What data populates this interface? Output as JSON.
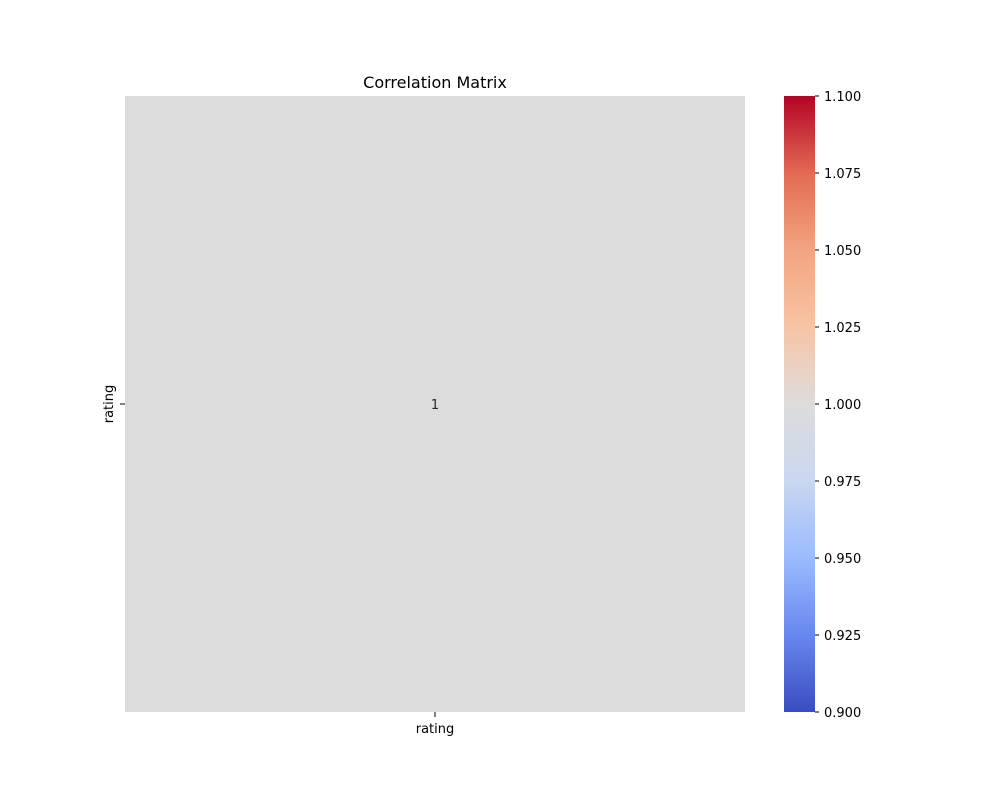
{
  "chart_data": {
    "type": "heatmap",
    "title": "Correlation Matrix",
    "x_labels": [
      "rating"
    ],
    "y_labels": [
      "rating"
    ],
    "values": [
      [
        1
      ]
    ],
    "annotations": [
      [
        "1"
      ]
    ],
    "colormap": "coolwarm",
    "cell_color": "#dddcdc",
    "colorbar": {
      "vmin": 0.9,
      "vmax": 1.1,
      "ticks": [
        "0.900",
        "0.925",
        "0.950",
        "0.975",
        "1.000",
        "1.025",
        "1.050",
        "1.075",
        "1.100"
      ],
      "colors": [
        "#3b4cc0",
        "#6788ee",
        "#9abbff",
        "#c9d7f0",
        "#dddcdc",
        "#f7c4a4",
        "#f3a481",
        "#e36a53",
        "#b40426"
      ]
    },
    "grid": false,
    "legend": "colorbar right"
  }
}
